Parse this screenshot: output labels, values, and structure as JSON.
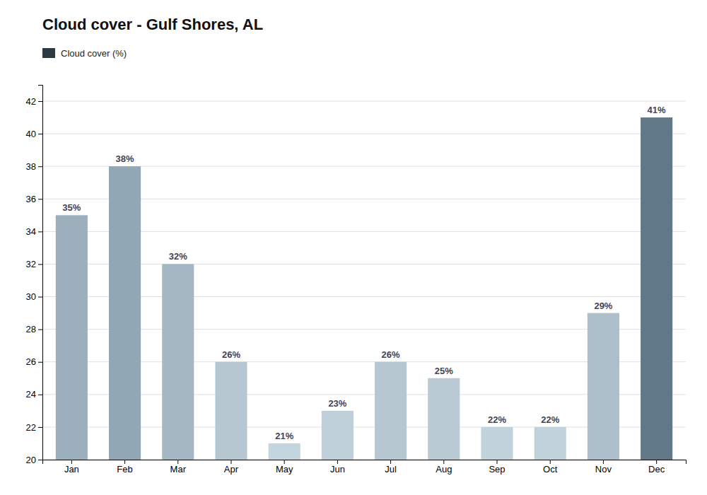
{
  "chart_data": {
    "type": "bar",
    "title": "Cloud cover - Gulf Shores, AL",
    "categories": [
      "Jan",
      "Feb",
      "Mar",
      "Apr",
      "May",
      "Jun",
      "Jul",
      "Aug",
      "Sep",
      "Oct",
      "Nov",
      "Dec"
    ],
    "series": [
      {
        "name": "Cloud cover (%)",
        "color": "#2e3a42",
        "values": [
          35,
          38,
          32,
          26,
          21,
          23,
          26,
          25,
          22,
          22,
          29,
          41
        ],
        "value_labels": [
          "35%",
          "38%",
          "32%",
          "26%",
          "21%",
          "23%",
          "26%",
          "25%",
          "22%",
          "22%",
          "29%",
          "41%"
        ],
        "colors": [
          "#9bafbc",
          "#92a7b5",
          "#a4b7c3",
          "#b6c7d2",
          "#c5d5de",
          "#bfcfd9",
          "#b6c7d2",
          "#b9cad4",
          "#c2d2db",
          "#c2d2db",
          "#adbfca",
          "#607888"
        ]
      }
    ],
    "ylim": [
      20,
      43
    ],
    "yticks": [
      20,
      22,
      24,
      26,
      28,
      30,
      32,
      34,
      36,
      38,
      40,
      42
    ],
    "grid": true,
    "legend": "top-left",
    "data_labels": true
  }
}
